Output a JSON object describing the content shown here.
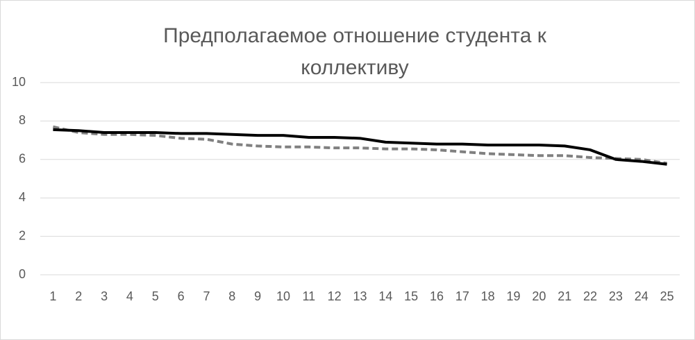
{
  "chart_data": {
    "type": "line",
    "title": "Предполагаемое отношение студента к коллективу",
    "categories": [
      1,
      2,
      3,
      4,
      5,
      6,
      7,
      8,
      9,
      10,
      11,
      12,
      13,
      14,
      15,
      16,
      17,
      18,
      19,
      20,
      21,
      22,
      23,
      24,
      25
    ],
    "series": [
      {
        "color": "#000000",
        "style": "solid",
        "values": [
          7.55,
          7.5,
          7.4,
          7.4,
          7.4,
          7.35,
          7.35,
          7.3,
          7.25,
          7.25,
          7.15,
          7.15,
          7.1,
          6.9,
          6.85,
          6.8,
          6.8,
          6.75,
          6.75,
          6.75,
          6.7,
          6.5,
          6.0,
          5.9,
          5.75
        ]
      },
      {
        "color": "#808080",
        "style": "dashed",
        "values": [
          7.7,
          7.4,
          7.3,
          7.3,
          7.25,
          7.1,
          7.05,
          6.8,
          6.7,
          6.65,
          6.65,
          6.6,
          6.6,
          6.55,
          6.55,
          6.5,
          6.4,
          6.3,
          6.25,
          6.2,
          6.2,
          6.1,
          6.05,
          6.0,
          5.8
        ]
      }
    ],
    "ylim": [
      0,
      10
    ],
    "yticks": [
      0,
      2,
      4,
      6,
      8,
      10
    ],
    "grid": true
  }
}
